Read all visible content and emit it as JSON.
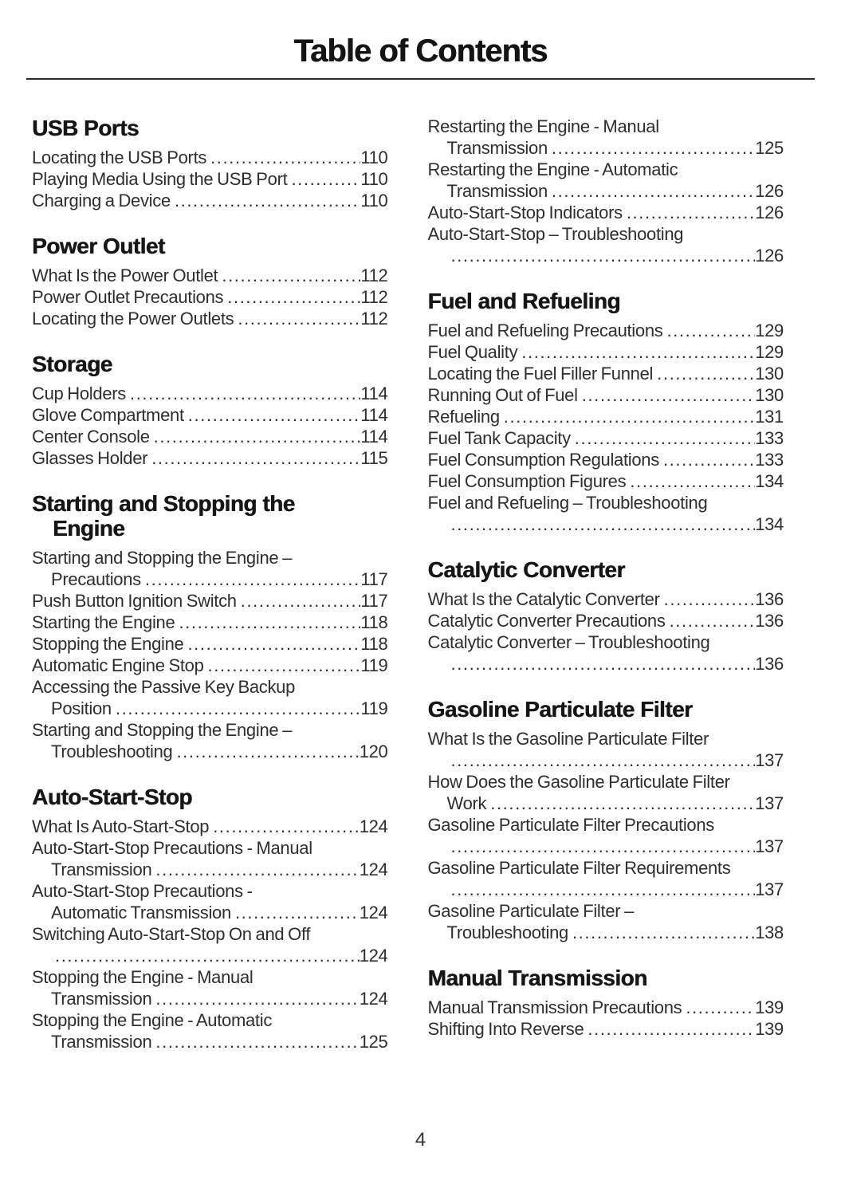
{
  "page": {
    "title": "Table of Contents",
    "footer_page_number": "4",
    "background_color": "#ffffff",
    "body_text_color": "#2e2e2e",
    "heading_text_color": "#161616",
    "rule_color": "#2b2b2b"
  },
  "toc": {
    "columns": [
      {
        "side": "left",
        "sections": [
          {
            "heading_lines": [
              "USB Ports"
            ],
            "entries": [
              {
                "lines": [
                  "Locating the USB Ports"
                ],
                "page": "110"
              },
              {
                "lines": [
                  "Playing Media Using the USB Port"
                ],
                "page": "110"
              },
              {
                "lines": [
                  "Charging a Device"
                ],
                "page": "110"
              }
            ]
          },
          {
            "heading_lines": [
              "Power Outlet"
            ],
            "entries": [
              {
                "lines": [
                  "What Is the Power Outlet"
                ],
                "page": "112"
              },
              {
                "lines": [
                  "Power Outlet Precautions"
                ],
                "page": "112"
              },
              {
                "lines": [
                  "Locating the Power Outlets"
                ],
                "page": "112"
              }
            ]
          },
          {
            "heading_lines": [
              "Storage"
            ],
            "entries": [
              {
                "lines": [
                  "Cup Holders"
                ],
                "page": "114"
              },
              {
                "lines": [
                  "Glove Compartment"
                ],
                "page": "114"
              },
              {
                "lines": [
                  "Center Console"
                ],
                "page": "114"
              },
              {
                "lines": [
                  "Glasses Holder"
                ],
                "page": "115"
              }
            ]
          },
          {
            "heading_lines": [
              "Starting and Stopping the",
              "Engine"
            ],
            "entries": [
              {
                "lines": [
                  "Starting and Stopping the Engine –",
                  "Precautions"
                ],
                "page": "117"
              },
              {
                "lines": [
                  "Push Button Ignition Switch"
                ],
                "page": "117"
              },
              {
                "lines": [
                  "Starting the Engine"
                ],
                "page": "118"
              },
              {
                "lines": [
                  "Stopping the Engine"
                ],
                "page": "118"
              },
              {
                "lines": [
                  "Automatic Engine Stop"
                ],
                "page": "119"
              },
              {
                "lines": [
                  "Accessing the Passive Key Backup",
                  "Position"
                ],
                "page": "119"
              },
              {
                "lines": [
                  "Starting and Stopping the Engine –",
                  "Troubleshooting"
                ],
                "page": "120"
              }
            ]
          },
          {
            "heading_lines": [
              "Auto-Start-Stop"
            ],
            "entries": [
              {
                "lines": [
                  "What Is Auto-Start-Stop"
                ],
                "page": "124"
              },
              {
                "lines": [
                  "Auto-Start-Stop Precautions - Manual",
                  "Transmission"
                ],
                "page": "124"
              },
              {
                "lines": [
                  "Auto-Start-Stop Precautions -",
                  "Automatic Transmission"
                ],
                "page": "124"
              },
              {
                "lines": [
                  "Switching Auto-Start-Stop On and Off",
                  ""
                ],
                "page": "124"
              },
              {
                "lines": [
                  "Stopping the Engine - Manual",
                  "Transmission"
                ],
                "page": "124"
              },
              {
                "lines": [
                  "Stopping the Engine - Automatic",
                  "Transmission"
                ],
                "page": "125"
              }
            ]
          }
        ]
      },
      {
        "side": "right",
        "sections": [
          {
            "heading_lines": [],
            "entries": [
              {
                "lines": [
                  "Restarting the Engine - Manual",
                  "Transmission"
                ],
                "page": "125"
              },
              {
                "lines": [
                  "Restarting the Engine - Automatic",
                  "Transmission"
                ],
                "page": "126"
              },
              {
                "lines": [
                  "Auto-Start-Stop Indicators"
                ],
                "page": "126"
              },
              {
                "lines": [
                  "Auto-Start-Stop – Troubleshooting",
                  ""
                ],
                "page": "126"
              }
            ]
          },
          {
            "heading_lines": [
              "Fuel and Refueling"
            ],
            "entries": [
              {
                "lines": [
                  "Fuel and Refueling Precautions"
                ],
                "page": "129"
              },
              {
                "lines": [
                  "Fuel Quality"
                ],
                "page": "129"
              },
              {
                "lines": [
                  "Locating the Fuel Filler Funnel"
                ],
                "page": "130"
              },
              {
                "lines": [
                  "Running Out of Fuel"
                ],
                "page": "130"
              },
              {
                "lines": [
                  "Refueling"
                ],
                "page": "131"
              },
              {
                "lines": [
                  "Fuel Tank Capacity"
                ],
                "page": "133"
              },
              {
                "lines": [
                  "Fuel Consumption Regulations"
                ],
                "page": "133"
              },
              {
                "lines": [
                  "Fuel Consumption Figures"
                ],
                "page": "134"
              },
              {
                "lines": [
                  "Fuel and Refueling – Troubleshooting",
                  ""
                ],
                "page": "134"
              }
            ]
          },
          {
            "heading_lines": [
              "Catalytic Converter"
            ],
            "entries": [
              {
                "lines": [
                  "What Is the Catalytic Converter"
                ],
                "page": "136"
              },
              {
                "lines": [
                  "Catalytic Converter Precautions"
                ],
                "page": "136"
              },
              {
                "lines": [
                  "Catalytic Converter – Troubleshooting",
                  ""
                ],
                "page": "136"
              }
            ]
          },
          {
            "heading_lines": [
              "Gasoline Particulate Filter"
            ],
            "entries": [
              {
                "lines": [
                  "What Is the Gasoline Particulate Filter",
                  ""
                ],
                "page": "137"
              },
              {
                "lines": [
                  "How Does the Gasoline Particulate Filter",
                  "Work"
                ],
                "page": "137"
              },
              {
                "lines": [
                  "Gasoline Particulate Filter Precautions",
                  ""
                ],
                "page": "137"
              },
              {
                "lines": [
                  "Gasoline Particulate Filter Requirements",
                  ""
                ],
                "page": "137"
              },
              {
                "lines": [
                  "Gasoline Particulate Filter –",
                  "Troubleshooting"
                ],
                "page": "138"
              }
            ]
          },
          {
            "heading_lines": [
              "Manual Transmission"
            ],
            "entries": [
              {
                "lines": [
                  "Manual Transmission Precautions"
                ],
                "page": "139"
              },
              {
                "lines": [
                  "Shifting Into Reverse"
                ],
                "page": "139"
              }
            ]
          }
        ]
      }
    ]
  }
}
